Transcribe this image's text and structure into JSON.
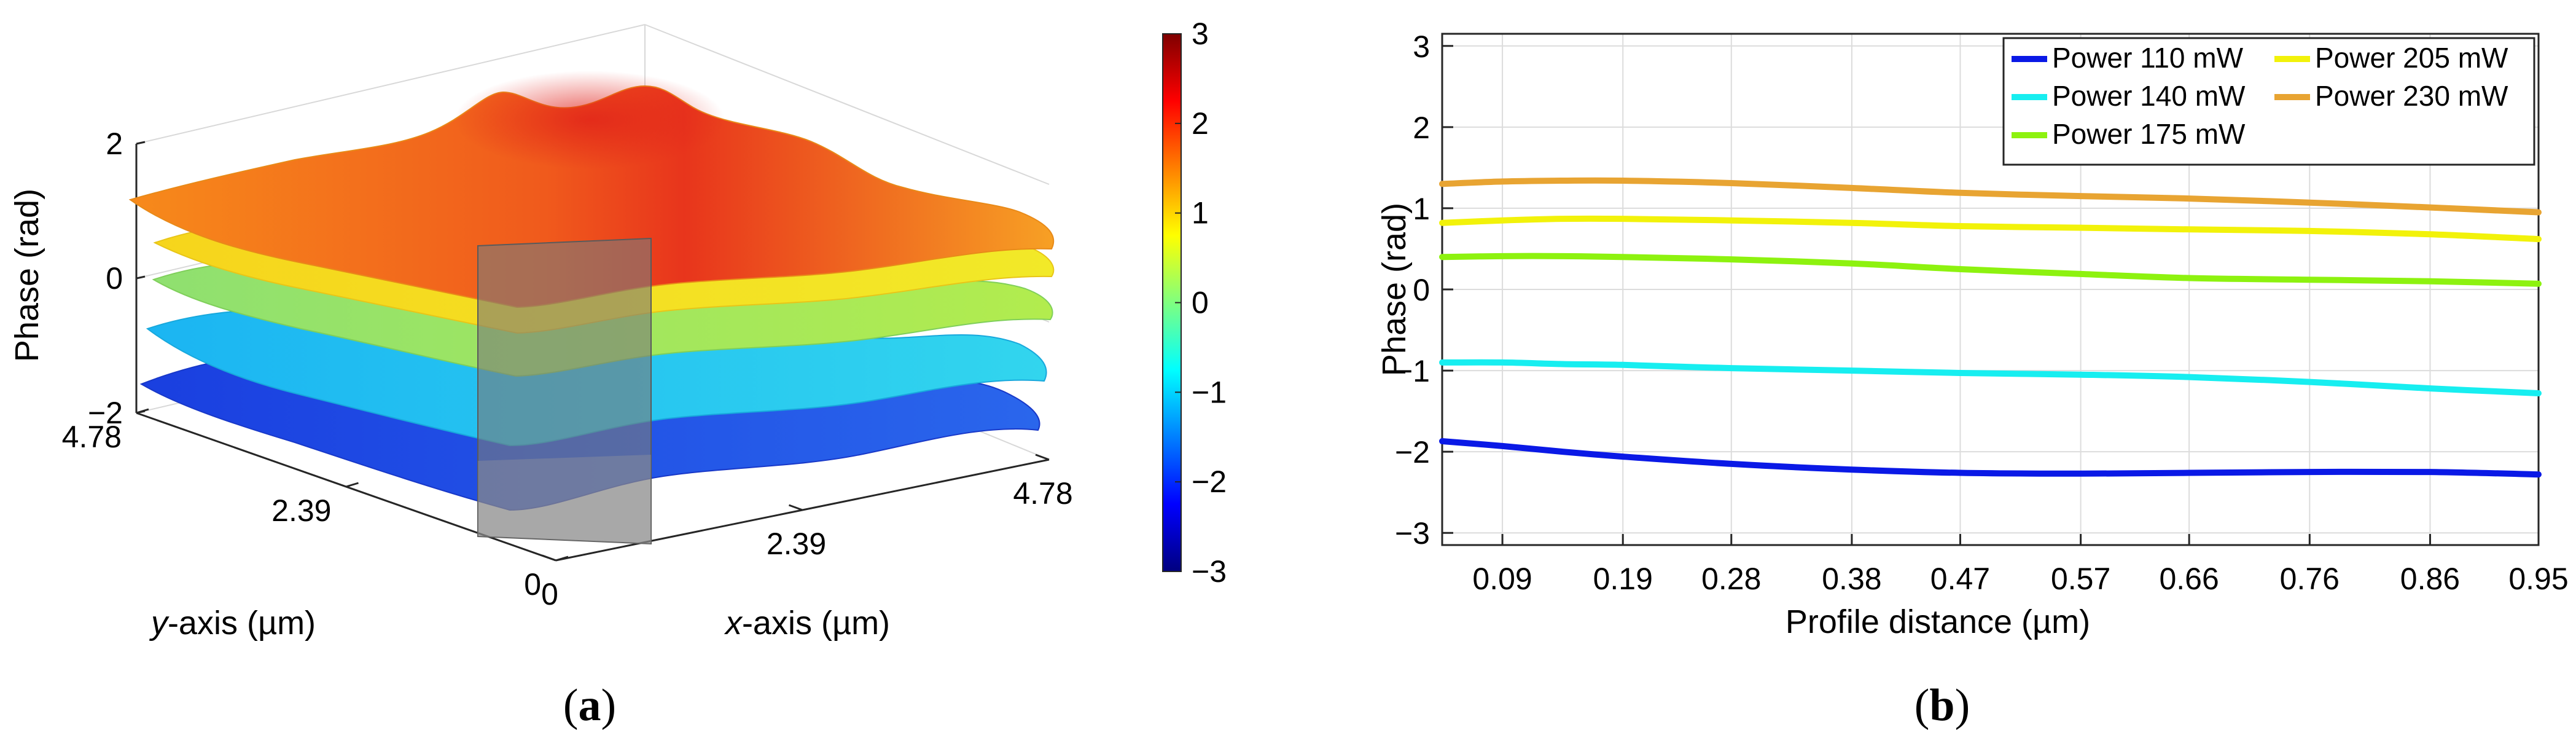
{
  "chart_data": [
    {
      "panel": "(a)",
      "panel_label_parts": [
        "(",
        "a",
        ")"
      ],
      "type": "surface",
      "xlabel_parts": [
        "x",
        "-axis (µm)"
      ],
      "ylabel_parts": [
        "y",
        "-axis (µm)"
      ],
      "zlabel": "Phase (rad)",
      "x_ticks": [
        "0",
        "2.39",
        "4.78"
      ],
      "y_ticks": [
        "0",
        "2.39",
        "4.78"
      ],
      "z_ticks": [
        "2",
        "0",
        "−2"
      ],
      "xlim": [
        0,
        4.78
      ],
      "ylim": [
        0,
        4.78
      ],
      "zlim": [
        -3,
        3
      ],
      "colorbar": {
        "colormap": "jet",
        "range": [
          -3,
          3
        ],
        "ticks": [
          "3",
          "2",
          "1",
          "0",
          "−1",
          "−2",
          "−3"
        ]
      },
      "surfaces": [
        {
          "mean_phase": 1.3,
          "color": "#f7a21b"
        },
        {
          "mean_phase": 0.8,
          "color": "#f3e21a"
        },
        {
          "mean_phase": 0.35,
          "color": "#9ee655"
        },
        {
          "mean_phase": -0.95,
          "color": "#22c3f0"
        },
        {
          "mean_phase": -2.1,
          "color": "#1f5ee8"
        }
      ],
      "profile_plane": true
    },
    {
      "panel": "(b)",
      "panel_label_parts": [
        "(",
        "b",
        ")"
      ],
      "type": "line",
      "xlabel": "Profile distance (µm)",
      "ylabel": "Phase (rad)",
      "xlim": [
        0.04,
        0.95
      ],
      "ylim": [
        -3.15,
        3.15
      ],
      "x_ticks": [
        0.09,
        0.19,
        0.28,
        0.38,
        0.47,
        0.57,
        0.66,
        0.76,
        0.86,
        0.95
      ],
      "x_tick_labels": [
        "0.09",
        "0.19",
        "0.28",
        "0.38",
        "0.47",
        "0.57",
        "0.66",
        "0.76",
        "0.86",
        "0.95"
      ],
      "y_ticks": [
        3,
        2,
        1,
        0,
        -1,
        -2,
        -3
      ],
      "y_tick_labels": [
        "3",
        "2",
        "1",
        "0",
        "−1",
        "−2",
        "−3"
      ],
      "grid": true,
      "legend_position": "top-right",
      "x": [
        0.04,
        0.09,
        0.14,
        0.19,
        0.28,
        0.38,
        0.47,
        0.57,
        0.66,
        0.76,
        0.86,
        0.95
      ],
      "series": [
        {
          "name": "Power 110 mW",
          "color": "#0a19e6",
          "values": [
            -1.87,
            -1.93,
            -2.0,
            -2.06,
            -2.15,
            -2.22,
            -2.26,
            -2.27,
            -2.26,
            -2.25,
            -2.25,
            -2.28
          ]
        },
        {
          "name": "Power 140 mW",
          "color": "#17eef0",
          "values": [
            -0.9,
            -0.9,
            -0.92,
            -0.93,
            -0.97,
            -1.0,
            -1.03,
            -1.05,
            -1.08,
            -1.14,
            -1.22,
            -1.28
          ]
        },
        {
          "name": "Power 175 mW",
          "color": "#8df20f",
          "values": [
            0.4,
            0.41,
            0.41,
            0.4,
            0.37,
            0.32,
            0.25,
            0.19,
            0.14,
            0.12,
            0.1,
            0.07
          ]
        },
        {
          "name": "Power 205 mW",
          "color": "#f2f20a",
          "values": [
            0.82,
            0.85,
            0.87,
            0.87,
            0.85,
            0.82,
            0.78,
            0.76,
            0.74,
            0.72,
            0.68,
            0.62
          ]
        },
        {
          "name": "Power 230 mW",
          "color": "#e8a432",
          "values": [
            1.3,
            1.33,
            1.34,
            1.34,
            1.31,
            1.25,
            1.19,
            1.15,
            1.12,
            1.07,
            1.01,
            0.95
          ]
        }
      ]
    }
  ]
}
